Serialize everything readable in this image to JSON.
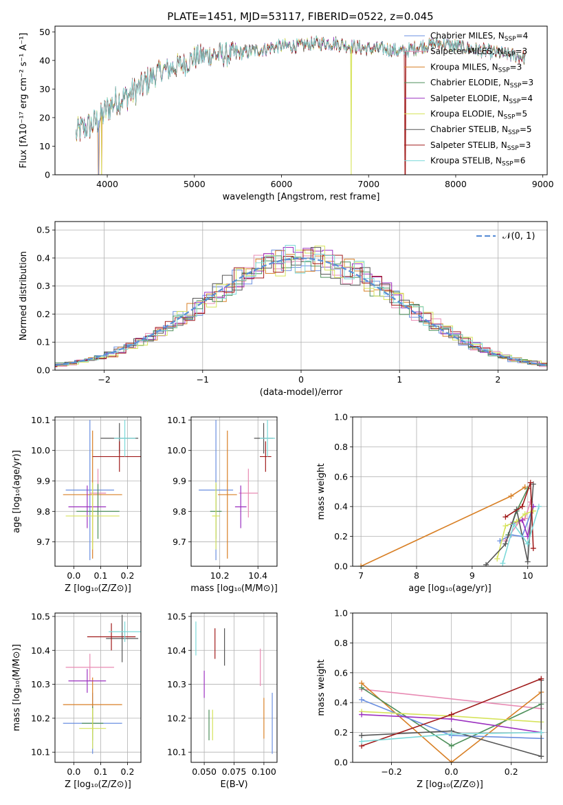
{
  "figure": {
    "title": "PLATE=1451, MJD=53117, FIBERID=0522, z=0.045"
  },
  "colors": {
    "Chabrier MILES": "#6a8fe0",
    "Salpeter MILES": "#e88ab3",
    "Kroupa MILES": "#d87f24",
    "Chabrier ELODIE": "#4d8f5a",
    "Salpeter ELODIE": "#9b30c0",
    "Kroupa ELODIE": "#d6e35a",
    "Chabrier STELIB": "#555555",
    "Salpeter STELIB": "#a01a1a",
    "Kroupa STELIB": "#7ad8d8",
    "gauss": "#5b8fd6",
    "grid": "#b0b0b0"
  },
  "chart_data": [
    {
      "id": "spectrum",
      "type": "line",
      "xlabel": "wavelength [Angstrom, rest frame]",
      "ylabel": "Flux [fλ10⁻¹⁷ erg cm⁻² s⁻¹ A⁻¹]",
      "xlim": [
        3400,
        9050
      ],
      "ylim": [
        0,
        52
      ],
      "xticks": [
        4000,
        5000,
        6000,
        7000,
        8000,
        9000
      ],
      "yticks": [
        0,
        10,
        20,
        30,
        40,
        50
      ],
      "grid": false,
      "legend_position": "right",
      "legend": [
        {
          "label": "Chabrier MILES, N",
          "sub": "SSP",
          "tail": "=4",
          "key": "Chabrier MILES"
        },
        {
          "label": "Salpeter MILES, N",
          "sub": "SSP",
          "tail": "=3",
          "key": "Salpeter MILES"
        },
        {
          "label": "Kroupa MILES, N",
          "sub": "SSP",
          "tail": "=3",
          "key": "Kroupa MILES"
        },
        {
          "label": "Chabrier ELODIE, N",
          "sub": "SSP",
          "tail": "=3",
          "key": "Chabrier ELODIE"
        },
        {
          "label": "Salpeter ELODIE, N",
          "sub": "SSP",
          "tail": "=4",
          "key": "Salpeter ELODIE"
        },
        {
          "label": "Kroupa ELODIE, N",
          "sub": "SSP",
          "tail": "=5",
          "key": "Kroupa ELODIE"
        },
        {
          "label": "Chabrier STELIB, N",
          "sub": "SSP",
          "tail": "=5",
          "key": "Chabrier STELIB"
        },
        {
          "label": "Salpeter STELIB, N",
          "sub": "SSP",
          "tail": "=3",
          "key": "Salpeter STELIB"
        },
        {
          "label": "Kroupa STELIB, N",
          "sub": "SSP",
          "tail": "=6",
          "key": "Kroupa STELIB"
        }
      ],
      "continuum": [
        [
          3640,
          14
        ],
        [
          3700,
          16
        ],
        [
          3800,
          17
        ],
        [
          3900,
          19
        ],
        [
          4000,
          23
        ],
        [
          4100,
          26
        ],
        [
          4200,
          27
        ],
        [
          4300,
          29
        ],
        [
          4400,
          31
        ],
        [
          4500,
          34
        ],
        [
          4600,
          36
        ],
        [
          4700,
          37
        ],
        [
          4800,
          38
        ],
        [
          4900,
          39
        ],
        [
          5000,
          41
        ],
        [
          5200,
          42
        ],
        [
          5400,
          42
        ],
        [
          5600,
          43
        ],
        [
          5800,
          44
        ],
        [
          6000,
          45
        ],
        [
          6200,
          45
        ],
        [
          6400,
          46
        ],
        [
          6600,
          46
        ],
        [
          6800,
          45
        ],
        [
          7000,
          44
        ],
        [
          7200,
          44
        ],
        [
          7400,
          43
        ],
        [
          7600,
          45
        ],
        [
          7800,
          46
        ],
        [
          8000,
          45
        ],
        [
          8200,
          44
        ],
        [
          8400,
          43
        ],
        [
          8600,
          42
        ],
        [
          8800,
          41
        ]
      ],
      "dips": [
        [
          3900,
          0
        ],
        [
          3934,
          0
        ],
        [
          6800,
          0
        ],
        [
          7420,
          0
        ]
      ]
    },
    {
      "id": "residuals",
      "type": "histogram",
      "xlabel": "(data-model)/error",
      "ylabel": "Normed distribution",
      "xlim": [
        -2.5,
        2.5
      ],
      "ylim": [
        0,
        0.53
      ],
      "xticks": [
        -2,
        -1,
        0,
        1,
        2
      ],
      "yticks": [
        0.0,
        0.1,
        0.2,
        0.3,
        0.4,
        0.5
      ],
      "grid": true,
      "legend_position": "top-right",
      "legend_label": "𝒩(0, 1)",
      "bin_width": 0.1,
      "series_keys": [
        "Chabrier MILES",
        "Salpeter MILES",
        "Kroupa MILES",
        "Chabrier ELODIE",
        "Salpeter ELODIE",
        "Kroupa ELODIE",
        "Chabrier STELIB",
        "Salpeter STELIB",
        "Kroupa STELIB"
      ]
    },
    {
      "id": "age_vs_Z",
      "type": "errorbar",
      "xlabel": "Z [log₁₀(Z/Z⊙)]",
      "ylabel": "age  [log₁₀(age/yr)]",
      "xlim": [
        -0.07,
        0.25
      ],
      "ylim": [
        9.62,
        10.11
      ],
      "xticks": [
        0.0,
        0.1,
        0.2
      ],
      "yticks": [
        9.7,
        9.8,
        9.9,
        10.0,
        10.1
      ],
      "grid": true,
      "points": [
        {
          "key": "Chabrier MILES",
          "x": 0.06,
          "xerr": 0.09,
          "y": 9.87,
          "yerr": 0.23
        },
        {
          "key": "Salpeter MILES",
          "x": 0.09,
          "xerr": 0.03,
          "y": 9.86,
          "yerr": 0.08
        },
        {
          "key": "Kroupa MILES",
          "x": 0.07,
          "xerr": 0.11,
          "y": 9.855,
          "yerr": 0.21
        },
        {
          "key": "Chabrier ELODIE",
          "x": 0.09,
          "xerr": 0.08,
          "y": 9.8,
          "yerr": 0.09
        },
        {
          "key": "Salpeter ELODIE",
          "x": 0.05,
          "xerr": 0.07,
          "y": 9.815,
          "yerr": 0.07
        },
        {
          "key": "Kroupa ELODIE",
          "x": 0.07,
          "xerr": 0.1,
          "y": 9.785,
          "yerr": 0.11
        },
        {
          "key": "Chabrier STELIB",
          "x": 0.17,
          "xerr": 0.07,
          "y": 10.04,
          "yerr": 0.05
        },
        {
          "key": "Salpeter STELIB",
          "x": 0.17,
          "xerr": 0.1,
          "y": 9.98,
          "yerr": 0.05
        },
        {
          "key": "Kroupa STELIB",
          "x": 0.19,
          "xerr": 0.04,
          "y": 10.04,
          "yerr": 0.06
        }
      ]
    },
    {
      "id": "age_vs_mass",
      "type": "errorbar",
      "xlabel": "mass [log₁₀(M/M⊙)]",
      "ylabel": "",
      "xlim": [
        10.05,
        10.5
      ],
      "ylim": [
        9.62,
        10.11
      ],
      "xticks": [
        10.2,
        10.4
      ],
      "yticks": [
        9.7,
        9.8,
        9.9,
        10.0,
        10.1
      ],
      "grid": true,
      "points": [
        {
          "key": "Chabrier MILES",
          "x": 10.18,
          "xerr": 0.09,
          "y": 9.87,
          "yerr": 0.23
        },
        {
          "key": "Salpeter MILES",
          "x": 10.35,
          "xerr": 0.05,
          "y": 9.86,
          "yerr": 0.08
        },
        {
          "key": "Kroupa MILES",
          "x": 10.24,
          "xerr": 0.05,
          "y": 9.855,
          "yerr": 0.21
        },
        {
          "key": "Chabrier ELODIE",
          "x": 10.18,
          "xerr": 0.03,
          "y": 9.8,
          "yerr": 0.09
        },
        {
          "key": "Salpeter ELODIE",
          "x": 10.31,
          "xerr": 0.03,
          "y": 9.815,
          "yerr": 0.07
        },
        {
          "key": "Kroupa ELODIE",
          "x": 10.18,
          "xerr": 0.02,
          "y": 9.785,
          "yerr": 0.11
        },
        {
          "key": "Chabrier STELIB",
          "x": 10.43,
          "xerr": 0.05,
          "y": 10.04,
          "yerr": 0.05
        },
        {
          "key": "Salpeter STELIB",
          "x": 10.44,
          "xerr": 0.03,
          "y": 9.98,
          "yerr": 0.05
        },
        {
          "key": "Kroupa STELIB",
          "x": 10.45,
          "xerr": 0.04,
          "y": 10.04,
          "yerr": 0.06
        }
      ]
    },
    {
      "id": "weight_vs_age",
      "type": "line",
      "xlabel": "age  [log₁₀(age/yr)]",
      "ylabel": "mass weight",
      "xlim": [
        6.85,
        10.35
      ],
      "ylim": [
        0,
        1
      ],
      "xticks": [
        7,
        8,
        9,
        10
      ],
      "yticks": [
        0.0,
        0.2,
        0.4,
        0.6,
        0.8,
        1.0
      ],
      "grid": true,
      "series": [
        {
          "key": "Kroupa MILES",
          "x": [
            7.0,
            9.7,
            9.95
          ],
          "y": [
            0.0,
            0.47,
            0.53
          ]
        },
        {
          "key": "Chabrier MILES",
          "x": [
            9.5,
            9.7,
            9.9,
            10.1
          ],
          "y": [
            0.17,
            0.21,
            0.2,
            0.4
          ]
        },
        {
          "key": "Salpeter MILES",
          "x": [
            9.6,
            9.85,
            9.95,
            10.05
          ],
          "y": [
            0.17,
            0.3,
            0.32,
            0.43
          ]
        },
        {
          "key": "Chabrier ELODIE",
          "x": [
            9.65,
            9.8,
            10.0
          ],
          "y": [
            0.21,
            0.37,
            0.52
          ]
        },
        {
          "key": "Salpeter ELODIE",
          "x": [
            9.7,
            9.9,
            10.0,
            10.1
          ],
          "y": [
            0.28,
            0.31,
            0.2,
            0.4
          ]
        },
        {
          "key": "Kroupa ELODIE",
          "x": [
            9.45,
            9.6,
            9.8,
            9.95,
            10.1
          ],
          "y": [
            0.05,
            0.27,
            0.3,
            0.35,
            0.37
          ]
        },
        {
          "key": "Chabrier STELIB",
          "x": [
            9.25,
            9.6,
            9.8,
            10.0,
            10.1
          ],
          "y": [
            0.01,
            0.15,
            0.38,
            0.03,
            0.55
          ]
        },
        {
          "key": "Salpeter STELIB",
          "x": [
            9.6,
            9.9,
            10.05,
            10.1
          ],
          "y": [
            0.33,
            0.4,
            0.56,
            0.12
          ]
        },
        {
          "key": "Kroupa STELIB",
          "x": [
            9.55,
            9.75,
            10.0,
            10.2
          ],
          "y": [
            0.02,
            0.28,
            0.15,
            0.4
          ]
        }
      ]
    },
    {
      "id": "mass_vs_Z",
      "type": "errorbar",
      "xlabel": "Z [log₁₀(Z/Z⊙)]",
      "ylabel": "mass [log₁₀(M/M⊙)]",
      "xlim": [
        -0.07,
        0.25
      ],
      "ylim": [
        10.07,
        10.51
      ],
      "xticks": [
        0.0,
        0.1,
        0.2
      ],
      "yticks": [
        10.1,
        10.2,
        10.3,
        10.4,
        10.5
      ],
      "grid": true,
      "points": [
        {
          "key": "Chabrier MILES",
          "x": 0.07,
          "xerr": 0.11,
          "y": 10.185,
          "yerr": 0.09
        },
        {
          "key": "Salpeter MILES",
          "x": 0.06,
          "xerr": 0.09,
          "y": 10.35,
          "yerr": 0.04
        },
        {
          "key": "Kroupa MILES",
          "x": 0.07,
          "xerr": 0.11,
          "y": 10.24,
          "yerr": 0.08
        },
        {
          "key": "Chabrier ELODIE",
          "x": 0.07,
          "xerr": 0.04,
          "y": 10.185,
          "yerr": 0.05
        },
        {
          "key": "Salpeter ELODIE",
          "x": 0.05,
          "xerr": 0.07,
          "y": 10.31,
          "yerr": 0.035
        },
        {
          "key": "Kroupa ELODIE",
          "x": 0.07,
          "xerr": 0.05,
          "y": 10.17,
          "yerr": 0.06
        },
        {
          "key": "Chabrier STELIB",
          "x": 0.18,
          "xerr": 0.06,
          "y": 10.435,
          "yerr": 0.07
        },
        {
          "key": "Salpeter STELIB",
          "x": 0.14,
          "xerr": 0.09,
          "y": 10.44,
          "yerr": 0.04
        },
        {
          "key": "Kroupa STELIB",
          "x": 0.19,
          "xerr": 0.06,
          "y": 10.455,
          "yerr": 0.03
        }
      ]
    },
    {
      "id": "mass_vs_ebv",
      "type": "errorbar",
      "xlabel": "E(B-V)",
      "ylabel": "",
      "xlim": [
        0.039,
        0.111
      ],
      "ylim": [
        10.07,
        10.51
      ],
      "xticks": [
        0.05,
        0.075,
        0.1
      ],
      "xtick_labels": [
        "0.050",
        "0.075",
        "0.100"
      ],
      "yticks": [
        10.1,
        10.2,
        10.3,
        10.4,
        10.5
      ],
      "grid": true,
      "points": [
        {
          "key": "Chabrier MILES",
          "x": 0.107,
          "xerr": 0.0,
          "y": 10.185,
          "yerr": 0.09
        },
        {
          "key": "Salpeter MILES",
          "x": 0.097,
          "xerr": 0.0,
          "y": 10.35,
          "yerr": 0.055
        },
        {
          "key": "Kroupa MILES",
          "x": 0.1,
          "xerr": 0.0,
          "y": 10.2,
          "yerr": 0.06
        },
        {
          "key": "Chabrier ELODIE",
          "x": 0.054,
          "xerr": 0.0,
          "y": 10.18,
          "yerr": 0.045
        },
        {
          "key": "Salpeter ELODIE",
          "x": 0.05,
          "xerr": 0.0,
          "y": 10.3,
          "yerr": 0.04
        },
        {
          "key": "Kroupa ELODIE",
          "x": 0.057,
          "xerr": 0.0,
          "y": 10.18,
          "yerr": 0.045
        },
        {
          "key": "Chabrier STELIB",
          "x": 0.067,
          "xerr": 0.0,
          "y": 10.41,
          "yerr": 0.055
        },
        {
          "key": "Salpeter STELIB",
          "x": 0.059,
          "xerr": 0.0,
          "y": 10.42,
          "yerr": 0.045
        },
        {
          "key": "Kroupa STELIB",
          "x": 0.043,
          "xerr": 0.0,
          "y": 10.435,
          "yerr": 0.05
        }
      ]
    },
    {
      "id": "weight_vs_Z",
      "type": "line",
      "xlabel": "Z [log₁₀(Z/Z⊙)]",
      "ylabel": "mass weight",
      "xlim": [
        -0.33,
        0.32
      ],
      "ylim": [
        0,
        1
      ],
      "xticks": [
        -0.2,
        0.0,
        0.2
      ],
      "yticks": [
        0.0,
        0.2,
        0.4,
        0.6,
        0.8,
        1.0
      ],
      "grid": true,
      "series": [
        {
          "key": "Salpeter MILES",
          "x": [
            -0.3,
            0.3
          ],
          "y": [
            0.49,
            0.36
          ]
        },
        {
          "key": "Kroupa MILES",
          "x": [
            -0.3,
            0.0,
            0.3
          ],
          "y": [
            0.53,
            0.0,
            0.47
          ]
        },
        {
          "key": "Chabrier ELODIE",
          "x": [
            -0.3,
            0.0,
            0.3
          ],
          "y": [
            0.5,
            0.11,
            0.39
          ]
        },
        {
          "key": "Chabrier MILES",
          "x": [
            -0.3,
            0.0,
            0.3
          ],
          "y": [
            0.42,
            0.18,
            0.16
          ]
        },
        {
          "key": "Kroupa ELODIE",
          "x": [
            -0.3,
            0.0,
            0.3
          ],
          "y": [
            0.34,
            0.31,
            0.27
          ]
        },
        {
          "key": "Salpeter ELODIE",
          "x": [
            -0.3,
            0.0,
            0.3
          ],
          "y": [
            0.32,
            0.29,
            0.2
          ]
        },
        {
          "key": "Chabrier STELIB",
          "x": [
            -0.3,
            0.0,
            0.3,
            0.3
          ],
          "y": [
            0.18,
            0.21,
            0.04,
            0.55
          ]
        },
        {
          "key": "Salpeter STELIB",
          "x": [
            -0.3,
            0.0,
            0.3
          ],
          "y": [
            0.11,
            0.32,
            0.56
          ]
        },
        {
          "key": "Kroupa STELIB",
          "x": [
            -0.3,
            0.0,
            0.3
          ],
          "y": [
            0.14,
            0.19,
            0.2
          ]
        }
      ]
    }
  ]
}
